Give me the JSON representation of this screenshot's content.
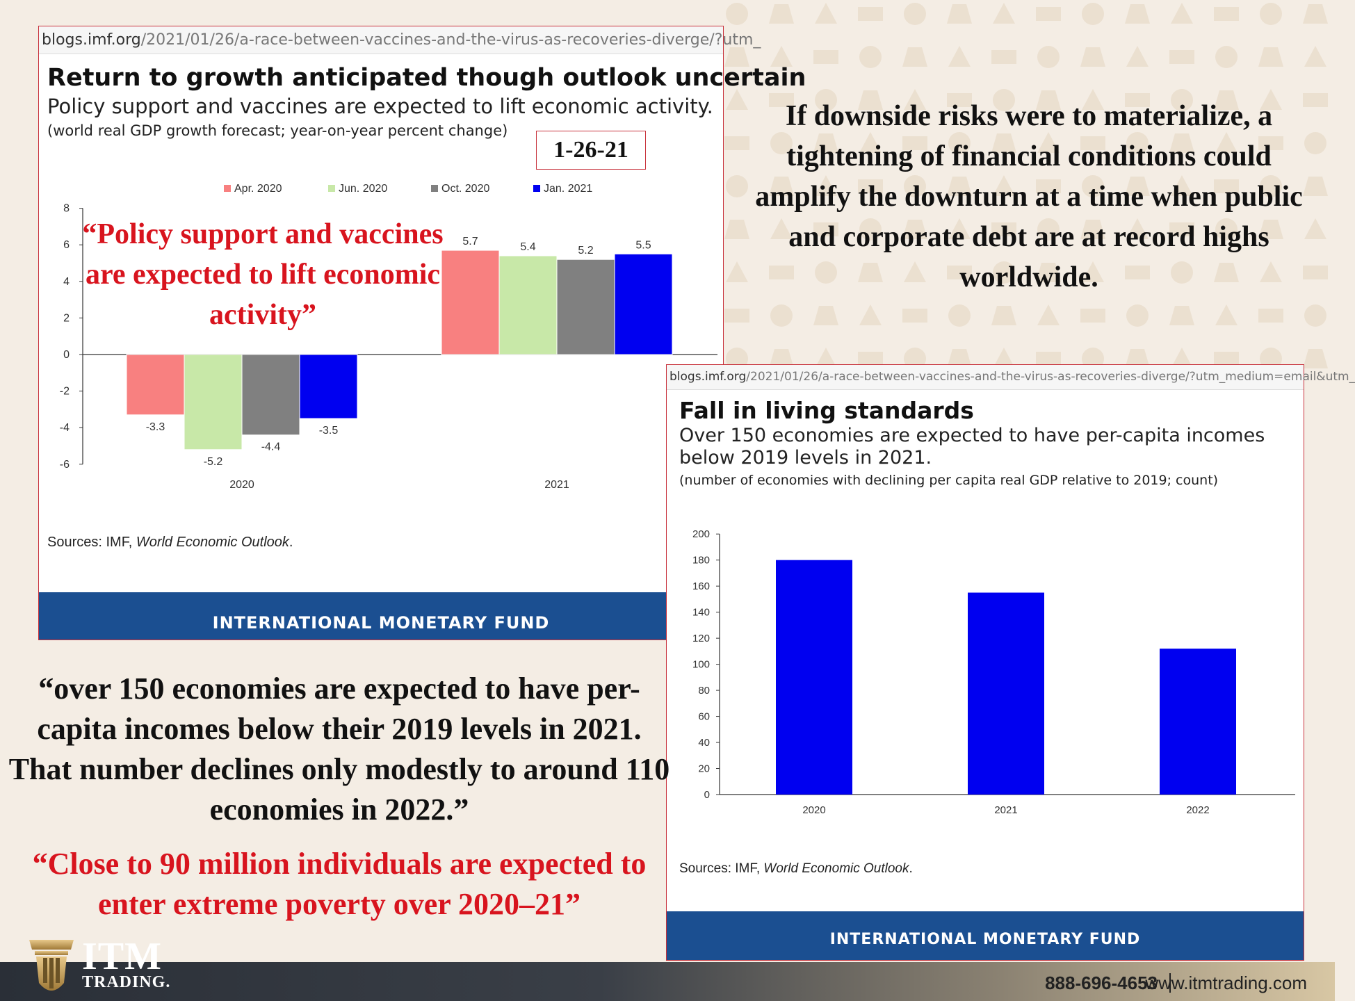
{
  "colors": {
    "apr2020": "#f88080",
    "jun2020": "#c8e8a8",
    "oct2020": "#808080",
    "jan2021": "#0000f0",
    "quote_red": "#d8141e",
    "imf_blue": "#1b4f91"
  },
  "chart1": {
    "url_domain": "blogs.imf.org",
    "url_path": "/2021/01/26/a-race-between-vaccines-and-the-virus-as-recoveries-diverge/?utm_",
    "title": "Return to growth anticipated though outlook uncertain",
    "subtitle": "Policy support and vaccines are expected to lift economic activity.",
    "note": "(world real GDP growth forecast; year-on-year percent change)",
    "date_box": "1-26-21",
    "overlay_quote": "“Policy support and vaccines are expected to lift economic activity”",
    "source_prefix": "Sources: IMF, ",
    "source_italic": "World Economic Outlook",
    "source_suffix": ".",
    "footer": "INTERNATIONAL MONETARY FUND"
  },
  "chart2": {
    "url_domain": "blogs.imf.org",
    "url_path": "/2021/01/26/a-race-between-vaccines-and-the-virus-as-recoveries-diverge/?utm_medium=email&utm_",
    "title": "Fall in living standards",
    "subtitle_line1": "Over 150 economies are expected to have per-capita incomes",
    "subtitle_line2": "below 2019 levels in 2021.",
    "note": "(number of economies with declining per capita real GDP relative to 2019; count)",
    "source_prefix": "Sources: IMF, ",
    "source_italic": "World Economic Outlook",
    "source_suffix": ".",
    "footer": "INTERNATIONAL MONETARY FUND"
  },
  "right_text": "If downside risks were to materialize, a tightening of financial conditions could amplify the downturn at a time when public and corporate debt are at record highs worldwide.",
  "quote_black": "“over 150 economies are expected to have per-capita incomes below their 2019 levels in 2021. That number declines only modestly to around 110 economies in 2022.”",
  "quote_red": "“Close to 90 million individuals are expected to enter extreme poverty over 2020–21”",
  "footer_bar": {
    "phone": "888-696-4653",
    "website": "www.itmtrading.com",
    "logo_itm": "ITM",
    "logo_trading": "TRADING."
  },
  "chart_data": [
    {
      "type": "bar",
      "categories": [
        "2020",
        "2021"
      ],
      "series": [
        {
          "name": "Apr. 2020",
          "values": [
            -3.3,
            5.7
          ]
        },
        {
          "name": "Jun. 2020",
          "values": [
            -5.2,
            5.4
          ]
        },
        {
          "name": "Oct. 2020",
          "values": [
            -4.4,
            5.2
          ]
        },
        {
          "name": "Jan. 2021",
          "values": [
            -3.5,
            5.5
          ]
        }
      ],
      "title": "Return to growth anticipated though outlook uncertain",
      "ylim": [
        -6,
        8
      ],
      "yticks": [
        -6,
        -4,
        -2,
        0,
        2,
        4,
        6,
        8
      ],
      "legend": "top",
      "grid": false
    },
    {
      "type": "bar",
      "categories": [
        "2020",
        "2021",
        "2022"
      ],
      "values": [
        180,
        155,
        112
      ],
      "title": "Fall in living standards",
      "ylim": [
        0,
        200
      ],
      "yticks": [
        0,
        20,
        40,
        60,
        80,
        100,
        120,
        140,
        160,
        180,
        200
      ],
      "grid": false
    }
  ]
}
